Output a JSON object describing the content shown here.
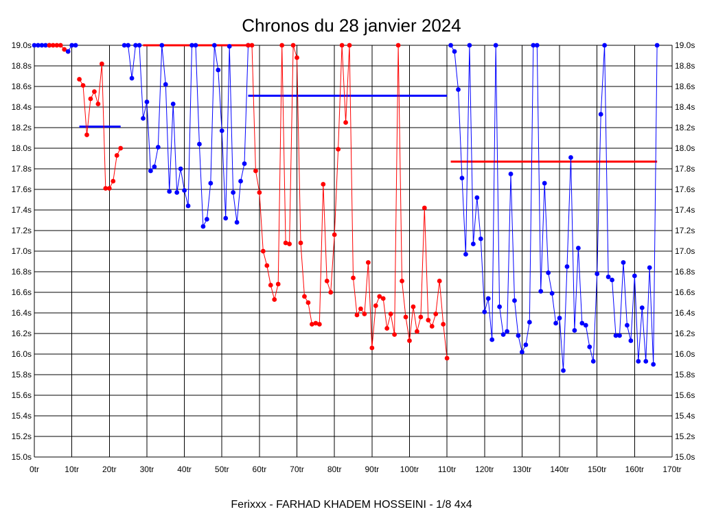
{
  "title": "Chronos du 28 janvier 2024",
  "footer": "Ferixxx - FARHAD KHADEM HOSSEINI - 1/8 4x4",
  "colors": {
    "blue": "#0000ff",
    "red": "#ff0000",
    "grid": "#000000",
    "background": "#ffffff"
  },
  "chart_data": {
    "type": "line",
    "title": "Chronos du 28 janvier 2024",
    "xlim": [
      0,
      170
    ],
    "ylim": [
      15.0,
      19.0
    ],
    "grid": true,
    "x_tick_labels": [
      "0tr",
      "10tr",
      "20tr",
      "30tr",
      "40tr",
      "50tr",
      "60tr",
      "70tr",
      "80tr",
      "90tr",
      "100tr",
      "110tr",
      "120tr",
      "130tr",
      "140tr",
      "150tr",
      "160tr",
      "170tr"
    ],
    "y_tick_labels": [
      "19.0s",
      "18.8s",
      "18.6s",
      "18.4s",
      "18.2s",
      "18.0s",
      "17.8s",
      "17.6s",
      "17.4s",
      "17.2s",
      "17.0s",
      "16.8s",
      "16.6s",
      "16.4s",
      "16.2s",
      "16.0s",
      "15.8s",
      "15.6s",
      "15.4s",
      "15.2s",
      "15.0s"
    ],
    "segments": [
      {
        "color": "blue",
        "points": [
          [
            0,
            19.0
          ],
          [
            1,
            19.0
          ],
          [
            2,
            19.0
          ],
          [
            3,
            19.0
          ],
          [
            4,
            19.0
          ]
        ]
      },
      {
        "color": "red",
        "points": [
          [
            4,
            19.0
          ],
          [
            5,
            19.0
          ],
          [
            6,
            19.0
          ],
          [
            7,
            19.0
          ],
          [
            8,
            18.96
          ],
          [
            9,
            18.94
          ]
        ]
      },
      {
        "color": "blue",
        "points": [
          [
            9,
            18.94
          ],
          [
            10,
            19.0
          ],
          [
            11,
            19.0
          ]
        ]
      },
      {
        "color": "red",
        "points": [
          [
            12,
            18.67
          ],
          [
            13,
            18.61
          ],
          [
            14,
            18.13
          ],
          [
            15,
            18.48
          ],
          [
            16,
            18.55
          ],
          [
            17,
            18.43
          ],
          [
            18,
            18.82
          ],
          [
            19,
            17.61
          ],
          [
            20,
            17.61
          ],
          [
            21,
            17.68
          ],
          [
            22,
            17.93
          ],
          [
            23,
            18.0
          ]
        ]
      },
      {
        "color": "blue",
        "points": [
          [
            24,
            19.0
          ],
          [
            25,
            19.0
          ],
          [
            26,
            18.68
          ],
          [
            27,
            19.0
          ],
          [
            28,
            19.0
          ],
          [
            29,
            18.29
          ],
          [
            30,
            18.45
          ],
          [
            31,
            17.78
          ],
          [
            32,
            17.82
          ],
          [
            33,
            18.01
          ],
          [
            34,
            19.0
          ],
          [
            35,
            18.62
          ],
          [
            36,
            17.58
          ],
          [
            37,
            18.43
          ],
          [
            38,
            17.57
          ],
          [
            39,
            17.8
          ],
          [
            40,
            17.59
          ],
          [
            41,
            17.44
          ],
          [
            42,
            19.0
          ],
          [
            43,
            19.0
          ],
          [
            44,
            18.04
          ],
          [
            45,
            17.24
          ],
          [
            46,
            17.31
          ],
          [
            47,
            17.66
          ],
          [
            48,
            19.0
          ],
          [
            49,
            18.76
          ],
          [
            50,
            18.17
          ],
          [
            51,
            17.32
          ],
          [
            52,
            18.99
          ],
          [
            53,
            17.57
          ],
          [
            54,
            17.28
          ],
          [
            55,
            17.68
          ],
          [
            56,
            17.85
          ],
          [
            57,
            19.0
          ]
        ]
      },
      {
        "color": "red",
        "points": [
          [
            57,
            19.0
          ],
          [
            58,
            19.0
          ],
          [
            59,
            17.78
          ],
          [
            60,
            17.57
          ],
          [
            61,
            17.0
          ],
          [
            62,
            16.86
          ],
          [
            63,
            16.67
          ],
          [
            64,
            16.53
          ],
          [
            65,
            16.68
          ],
          [
            66,
            19.0
          ],
          [
            67,
            17.08
          ],
          [
            68,
            17.07
          ],
          [
            69,
            19.0
          ],
          [
            70,
            18.88
          ],
          [
            71,
            17.08
          ],
          [
            72,
            16.56
          ],
          [
            73,
            16.5
          ],
          [
            74,
            16.29
          ],
          [
            75,
            16.3
          ],
          [
            76,
            16.29
          ],
          [
            77,
            17.65
          ],
          [
            78,
            16.71
          ],
          [
            79,
            16.6
          ],
          [
            80,
            17.16
          ],
          [
            81,
            17.99
          ],
          [
            82,
            19.0
          ],
          [
            83,
            18.25
          ],
          [
            84,
            19.0
          ],
          [
            85,
            16.74
          ],
          [
            86,
            16.38
          ],
          [
            87,
            16.44
          ],
          [
            88,
            16.39
          ],
          [
            89,
            16.89
          ],
          [
            90,
            16.06
          ],
          [
            91,
            16.47
          ],
          [
            92,
            16.56
          ],
          [
            93,
            16.54
          ],
          [
            94,
            16.25
          ],
          [
            95,
            16.39
          ],
          [
            96,
            16.19
          ],
          [
            97,
            19.0
          ],
          [
            98,
            16.71
          ],
          [
            99,
            16.36
          ],
          [
            100,
            16.13
          ],
          [
            101,
            16.46
          ],
          [
            102,
            16.22
          ],
          [
            103,
            16.36
          ],
          [
            104,
            17.42
          ],
          [
            105,
            16.33
          ],
          [
            106,
            16.27
          ],
          [
            107,
            16.39
          ],
          [
            108,
            16.71
          ],
          [
            109,
            16.29
          ],
          [
            110,
            15.96
          ]
        ]
      },
      {
        "color": "blue",
        "points": [
          [
            111,
            19.0
          ],
          [
            112,
            18.94
          ],
          [
            113,
            18.57
          ],
          [
            114,
            17.71
          ],
          [
            115,
            16.97
          ],
          [
            116,
            19.0
          ],
          [
            117,
            17.07
          ],
          [
            118,
            17.52
          ],
          [
            119,
            17.12
          ],
          [
            120,
            16.41
          ],
          [
            121,
            16.54
          ],
          [
            122,
            16.14
          ],
          [
            123,
            19.0
          ],
          [
            124,
            16.46
          ],
          [
            125,
            16.19
          ],
          [
            126,
            16.22
          ],
          [
            127,
            17.75
          ],
          [
            128,
            16.52
          ],
          [
            129,
            16.18
          ],
          [
            130,
            16.02
          ],
          [
            131,
            16.09
          ],
          [
            132,
            16.31
          ],
          [
            133,
            19.0
          ],
          [
            134,
            19.0
          ],
          [
            135,
            16.61
          ],
          [
            136,
            17.66
          ],
          [
            137,
            16.79
          ],
          [
            138,
            16.59
          ],
          [
            139,
            16.3
          ],
          [
            140,
            16.35
          ],
          [
            141,
            15.84
          ],
          [
            142,
            16.85
          ],
          [
            143,
            17.91
          ],
          [
            144,
            16.23
          ],
          [
            145,
            17.03
          ],
          [
            146,
            16.3
          ],
          [
            147,
            16.28
          ],
          [
            148,
            16.07
          ],
          [
            149,
            15.93
          ],
          [
            150,
            16.78
          ],
          [
            151,
            18.33
          ],
          [
            152,
            19.0
          ],
          [
            153,
            16.75
          ],
          [
            154,
            16.72
          ],
          [
            155,
            16.18
          ],
          [
            156,
            16.18
          ],
          [
            157,
            16.89
          ],
          [
            158,
            16.28
          ],
          [
            159,
            16.13
          ],
          [
            160,
            16.76
          ],
          [
            161,
            15.93
          ],
          [
            162,
            16.45
          ],
          [
            163,
            15.93
          ],
          [
            164,
            16.84
          ],
          [
            165,
            15.9
          ],
          [
            166,
            19.0
          ]
        ]
      }
    ],
    "average_lines": [
      {
        "color": "blue",
        "x": [
          12,
          23
        ],
        "y": 18.21
      },
      {
        "color": "red",
        "x": [
          29,
          57
        ],
        "y": 19.0
      },
      {
        "color": "blue",
        "x": [
          57,
          110
        ],
        "y": 18.51
      },
      {
        "color": "red",
        "x": [
          111,
          166
        ],
        "y": 17.87
      }
    ]
  }
}
